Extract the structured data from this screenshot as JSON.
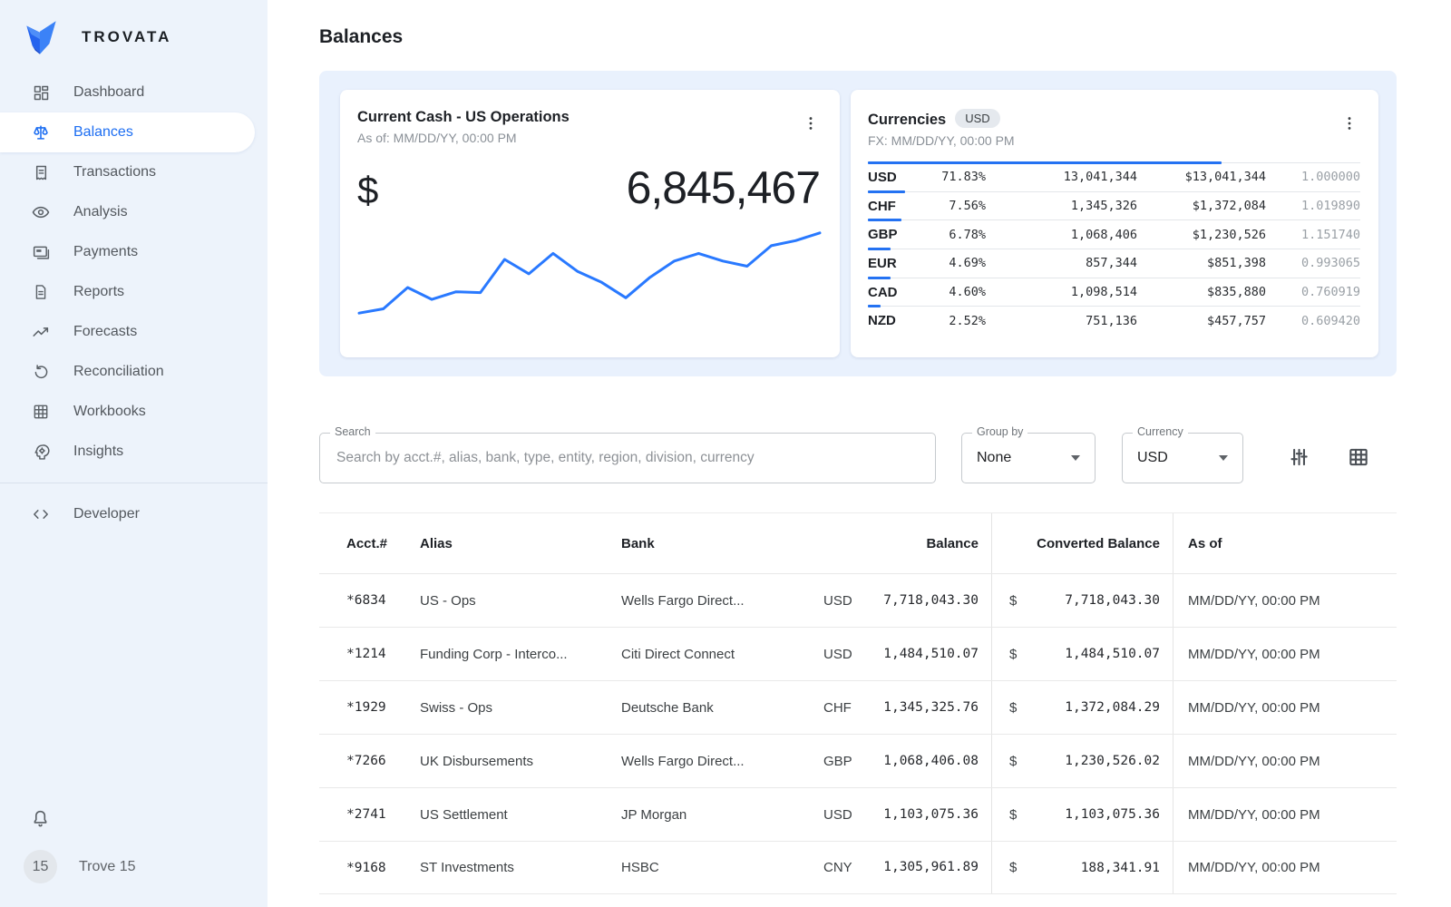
{
  "app": {
    "name": "TROVATA"
  },
  "sidebar": {
    "items": [
      {
        "label": "Dashboard",
        "icon": "dashboard-icon",
        "active": false
      },
      {
        "label": "Balances",
        "icon": "scale-icon",
        "active": true
      },
      {
        "label": "Transactions",
        "icon": "receipt-icon",
        "active": false
      },
      {
        "label": "Analysis",
        "icon": "eye-icon",
        "active": false
      },
      {
        "label": "Payments",
        "icon": "card-icon",
        "active": false
      },
      {
        "label": "Reports",
        "icon": "document-icon",
        "active": false
      },
      {
        "label": "Forecasts",
        "icon": "trend-up-icon",
        "active": false
      },
      {
        "label": "Reconciliation",
        "icon": "refresh-icon",
        "active": false
      },
      {
        "label": "Workbooks",
        "icon": "grid-icon",
        "active": false
      },
      {
        "label": "Insights",
        "icon": "insights-icon",
        "active": false
      }
    ],
    "developer_label": "Developer",
    "profile": {
      "avatar_text": "15",
      "name": "Trove 15"
    }
  },
  "page": {
    "title": "Balances"
  },
  "cash_card": {
    "title": "Current Cash - US Operations",
    "as_of": "As of: MM/DD/YY, 00:00 PM",
    "currency_symbol": "$",
    "amount": "6,845,467",
    "chart_data": {
      "type": "line",
      "title": "Current Cash - US Operations sparkline",
      "values": [
        3,
        8,
        33,
        19,
        28,
        27,
        66,
        49,
        73,
        52,
        39,
        21,
        45,
        64,
        73,
        64,
        58,
        82,
        88,
        97
      ],
      "ylim": [
        0,
        100
      ],
      "color": "#2979ff",
      "grid": false,
      "legend": "none"
    }
  },
  "currencies_card": {
    "title": "Currencies",
    "badge": "USD",
    "fx_label": "FX: MM/DD/YY, 00:00 PM",
    "bar_color": "#2472f2",
    "rows": [
      {
        "code": "USD",
        "pct": "71.83%",
        "pct_value": 71.83,
        "amount": "13,041,344",
        "converted": "$13,041,344",
        "rate": "1.000000"
      },
      {
        "code": "CHF",
        "pct": "7.56%",
        "pct_value": 7.56,
        "amount": "1,345,326",
        "converted": "$1,372,084",
        "rate": "1.019890"
      },
      {
        "code": "GBP",
        "pct": "6.78%",
        "pct_value": 6.78,
        "amount": "1,068,406",
        "converted": "$1,230,526",
        "rate": "1.151740"
      },
      {
        "code": "EUR",
        "pct": "4.69%",
        "pct_value": 4.69,
        "amount": "857,344",
        "converted": "$851,398",
        "rate": "0.993065"
      },
      {
        "code": "CAD",
        "pct": "4.60%",
        "pct_value": 4.6,
        "amount": "1,098,514",
        "converted": "$835,880",
        "rate": "0.760919"
      },
      {
        "code": "NZD",
        "pct": "2.52%",
        "pct_value": 2.52,
        "amount": "751,136",
        "converted": "$457,757",
        "rate": "0.609420"
      }
    ]
  },
  "filters": {
    "search_label": "Search",
    "search_placeholder": "Search by acct.#, alias, bank, type, entity, region, division, currency",
    "group_by_label": "Group by",
    "group_by_value": "None",
    "currency_label": "Currency",
    "currency_value": "USD"
  },
  "table": {
    "headers": {
      "acct": "Acct.#",
      "alias": "Alias",
      "bank": "Bank",
      "balance": "Balance",
      "converted": "Converted Balance",
      "as_of": "As of"
    },
    "rows": [
      {
        "acct": "*6834",
        "alias": "US - Ops",
        "bank": "Wells Fargo Direct...",
        "ccy": "USD",
        "balance": "7,718,043.30",
        "dollar": "$",
        "converted": "7,718,043.30",
        "as_of": "MM/DD/YY, 00:00 PM"
      },
      {
        "acct": "*1214",
        "alias": "Funding Corp - Interco...",
        "bank": "Citi Direct Connect",
        "ccy": "USD",
        "balance": "1,484,510.07",
        "dollar": "$",
        "converted": "1,484,510.07",
        "as_of": "MM/DD/YY, 00:00 PM"
      },
      {
        "acct": "*1929",
        "alias": "Swiss - Ops",
        "bank": "Deutsche Bank",
        "ccy": "CHF",
        "balance": "1,345,325.76",
        "dollar": "$",
        "converted": "1,372,084.29",
        "as_of": "MM/DD/YY, 00:00 PM"
      },
      {
        "acct": "*7266",
        "alias": "UK Disbursements",
        "bank": "Wells Fargo Direct...",
        "ccy": "GBP",
        "balance": "1,068,406.08",
        "dollar": "$",
        "converted": "1,230,526.02",
        "as_of": "MM/DD/YY, 00:00 PM"
      },
      {
        "acct": "*2741",
        "alias": "US Settlement",
        "bank": "JP Morgan",
        "ccy": "USD",
        "balance": "1,103,075.36",
        "dollar": "$",
        "converted": "1,103,075.36",
        "as_of": "MM/DD/YY, 00:00 PM"
      },
      {
        "acct": "*9168",
        "alias": "ST Investments",
        "bank": "HSBC",
        "ccy": "CNY",
        "balance": "1,305,961.89",
        "dollar": "$",
        "converted": "188,341.91",
        "as_of": "MM/DD/YY, 00:00 PM"
      }
    ]
  },
  "colors": {
    "accent": "#2472f2",
    "panel": "#e9f1fd",
    "sidebar": "#edf3fb"
  }
}
